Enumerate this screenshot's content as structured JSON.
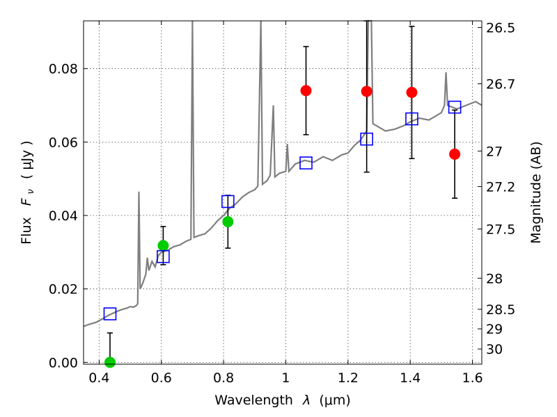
{
  "chart_data": {
    "type": "scatter",
    "xlabel_text": "Wavelength",
    "xlabel_symbol": "λ",
    "xlabel_unit": "(μm)",
    "ylabel_text": "Flux",
    "ylabel_symbol": "F",
    "ylabel_sub": "ν",
    "ylabel_unit": "( μJy )",
    "y2label": "Magnitude (AB)",
    "xlim": [
      0.35,
      1.63
    ],
    "ylim": [
      -0.0005,
      0.093
    ],
    "grid": true,
    "x_ticks": [
      {
        "v": 0.4,
        "t": "0.4"
      },
      {
        "v": 0.6,
        "t": "0.6"
      },
      {
        "v": 0.8,
        "t": "0.8"
      },
      {
        "v": 1.0,
        "t": "1"
      },
      {
        "v": 1.2,
        "t": "1.2"
      },
      {
        "v": 1.4,
        "t": "1.4"
      },
      {
        "v": 1.6,
        "t": "1.6"
      }
    ],
    "y_ticks": [
      {
        "v": 0.0,
        "t": "0.00"
      },
      {
        "v": 0.02,
        "t": "0.02"
      },
      {
        "v": 0.04,
        "t": "0.04"
      },
      {
        "v": 0.06,
        "t": "0.06"
      },
      {
        "v": 0.08,
        "t": "0.08"
      }
    ],
    "mag_ticks": [
      {
        "m": 26.5,
        "t": "26.5"
      },
      {
        "m": 26.7,
        "t": "26.7"
      },
      {
        "m": 27.0,
        "t": "27"
      },
      {
        "m": 27.2,
        "t": "27.2"
      },
      {
        "m": 27.5,
        "t": "27.5"
      },
      {
        "m": 28.0,
        "t": "28"
      },
      {
        "m": 28.5,
        "t": "28.5"
      },
      {
        "m": 29.0,
        "t": "29"
      },
      {
        "m": 30.0,
        "t": "30"
      }
    ],
    "model_spectrum": {
      "color": "#7f7f7f",
      "points": [
        [
          0.35,
          0.0098
        ],
        [
          0.37,
          0.0104
        ],
        [
          0.39,
          0.0109
        ],
        [
          0.41,
          0.0118
        ],
        [
          0.43,
          0.0128
        ],
        [
          0.45,
          0.0136
        ],
        [
          0.47,
          0.0143
        ],
        [
          0.49,
          0.0148
        ],
        [
          0.5,
          0.0152
        ],
        [
          0.51,
          0.015
        ],
        [
          0.52,
          0.0155
        ],
        [
          0.524,
          0.016
        ],
        [
          0.528,
          0.0465
        ],
        [
          0.532,
          0.02
        ],
        [
          0.54,
          0.0215
        ],
        [
          0.55,
          0.024
        ],
        [
          0.555,
          0.0285
        ],
        [
          0.56,
          0.025
        ],
        [
          0.57,
          0.0275
        ],
        [
          0.58,
          0.026
        ],
        [
          0.59,
          0.029
        ],
        [
          0.6,
          0.03
        ],
        [
          0.62,
          0.0305
        ],
        [
          0.64,
          0.0315
        ],
        [
          0.66,
          0.032
        ],
        [
          0.68,
          0.033
        ],
        [
          0.695,
          0.0335
        ],
        [
          0.7,
          0.093
        ],
        [
          0.705,
          0.034
        ],
        [
          0.72,
          0.0345
        ],
        [
          0.74,
          0.035
        ],
        [
          0.76,
          0.0365
        ],
        [
          0.78,
          0.0385
        ],
        [
          0.8,
          0.04
        ],
        [
          0.82,
          0.042
        ],
        [
          0.84,
          0.0432
        ],
        [
          0.86,
          0.045
        ],
        [
          0.88,
          0.0462
        ],
        [
          0.9,
          0.047
        ],
        [
          0.91,
          0.048
        ],
        [
          0.92,
          0.093
        ],
        [
          0.925,
          0.0485
        ],
        [
          0.94,
          0.0495
        ],
        [
          0.95,
          0.051
        ],
        [
          0.96,
          0.07
        ],
        [
          0.965,
          0.0505
        ],
        [
          0.98,
          0.0515
        ],
        [
          1.0,
          0.052
        ],
        [
          1.005,
          0.0595
        ],
        [
          1.01,
          0.052
        ],
        [
          1.03,
          0.054
        ],
        [
          1.06,
          0.055
        ],
        [
          1.09,
          0.0545
        ],
        [
          1.12,
          0.056
        ],
        [
          1.15,
          0.055
        ],
        [
          1.18,
          0.0565
        ],
        [
          1.2,
          0.057
        ],
        [
          1.22,
          0.059
        ],
        [
          1.24,
          0.0605
        ],
        [
          1.26,
          0.063
        ],
        [
          1.265,
          0.093
        ],
        [
          1.275,
          0.093
        ],
        [
          1.28,
          0.065
        ],
        [
          1.3,
          0.064
        ],
        [
          1.32,
          0.063
        ],
        [
          1.35,
          0.0635
        ],
        [
          1.38,
          0.0645
        ],
        [
          1.4,
          0.0655
        ],
        [
          1.43,
          0.0665
        ],
        [
          1.46,
          0.066
        ],
        [
          1.48,
          0.067
        ],
        [
          1.5,
          0.068
        ],
        [
          1.51,
          0.07
        ],
        [
          1.515,
          0.079
        ],
        [
          1.52,
          0.07
        ],
        [
          1.55,
          0.069
        ],
        [
          1.58,
          0.07
        ],
        [
          1.61,
          0.071
        ],
        [
          1.63,
          0.07
        ]
      ]
    },
    "series": [
      {
        "marker": "circle",
        "color": "#ff0000",
        "points": [
          {
            "x": 1.065,
            "y": 0.074,
            "err": 0.012
          },
          {
            "x": 1.26,
            "y": 0.0738,
            "err": 0.022
          },
          {
            "x": 1.405,
            "y": 0.0735,
            "err": 0.018
          },
          {
            "x": 1.543,
            "y": 0.0567,
            "err": 0.012
          }
        ]
      },
      {
        "marker": "circle",
        "color": "#00cc00",
        "points": [
          {
            "x": 0.435,
            "y": 0.0,
            "err": 0.008
          },
          {
            "x": 0.606,
            "y": 0.0318,
            "err": 0.0052
          },
          {
            "x": 0.814,
            "y": 0.0383,
            "err": 0.0072
          }
        ]
      },
      {
        "marker": "square-open",
        "color": "#0000ff",
        "points": [
          {
            "x": 0.435,
            "y": 0.0132
          },
          {
            "x": 0.606,
            "y": 0.0288
          },
          {
            "x": 0.814,
            "y": 0.0438
          },
          {
            "x": 1.065,
            "y": 0.0543
          },
          {
            "x": 1.26,
            "y": 0.0608
          },
          {
            "x": 1.405,
            "y": 0.0663
          },
          {
            "x": 1.543,
            "y": 0.0695
          }
        ]
      }
    ]
  }
}
